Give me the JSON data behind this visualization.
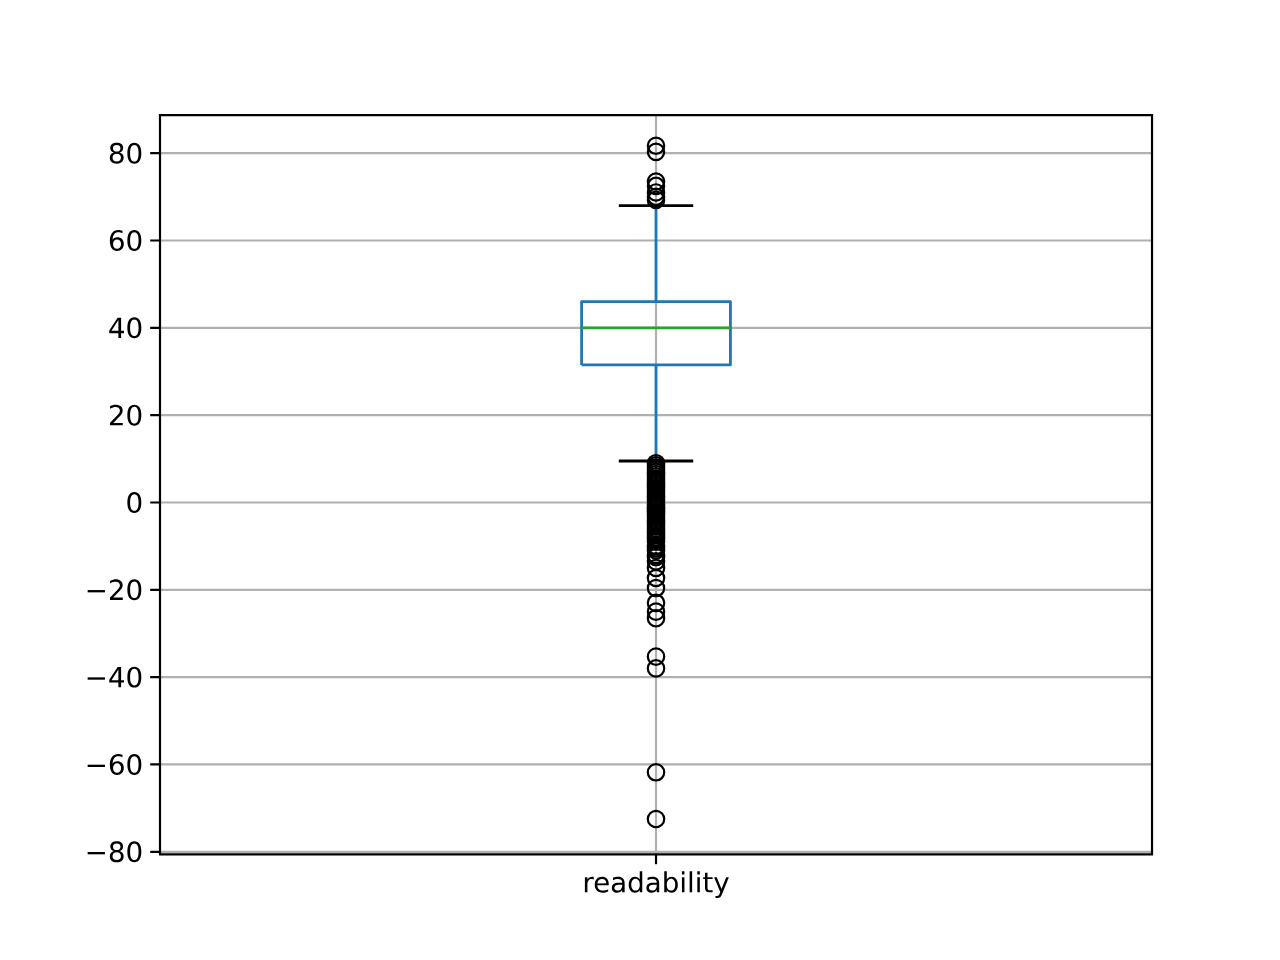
{
  "chart_data": {
    "type": "box",
    "categories": [
      "readability"
    ],
    "series": [
      {
        "color": "#1f77b4",
        "boxes": [
          {
            "low": 9.5,
            "q1": 31.5,
            "median": 40,
            "q3": 46,
            "high": 68,
            "outliers": [
              81.7,
              80.3,
              73.5,
              72.5,
              71,
              70,
              69.3,
              9,
              8.5,
              8,
              7.5,
              7,
              6.5,
              6,
              5.5,
              5,
              4.5,
              4,
              3.5,
              3,
              2.5,
              2,
              1.5,
              1,
              0.5,
              0,
              -0.5,
              -1,
              -1.5,
              -2,
              -2.5,
              -3,
              -3.5,
              -4,
              -4.5,
              -5,
              -5.5,
              -6,
              -6.5,
              -7,
              -7.5,
              -8,
              -8.5,
              -9,
              -10,
              -10.5,
              -11,
              -12,
              -12.5,
              -13.5,
              -15,
              -17.3,
              -19.6,
              -23,
              -25,
              -26.5,
              -35.3,
              -38,
              -61.8,
              -72.5
            ]
          }
        ]
      }
    ],
    "ylim": [
      -80.6,
      88.7
    ],
    "yticks": [
      {
        "value": -80,
        "label": "−80"
      },
      {
        "value": -60,
        "label": "−60"
      },
      {
        "value": -40,
        "label": "−40"
      },
      {
        "value": -20,
        "label": "−20"
      },
      0,
      20,
      40,
      60,
      80
    ],
    "grid": true
  }
}
